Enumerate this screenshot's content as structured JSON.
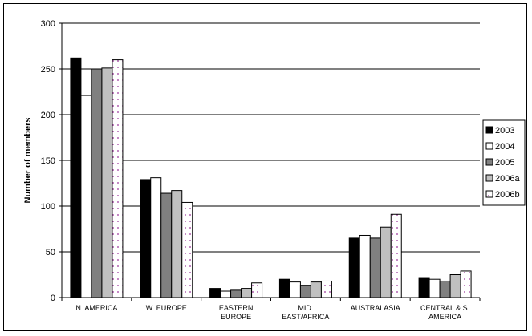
{
  "chart_data": {
    "type": "bar",
    "title": "",
    "xlabel": "",
    "ylabel": "Number of members",
    "ylim": [
      0,
      300
    ],
    "yticks": [
      0,
      50,
      100,
      150,
      200,
      250,
      300
    ],
    "grid": true,
    "legend_position": "right",
    "categories": [
      [
        "N. AMERICA"
      ],
      [
        "W. EUROPE"
      ],
      [
        "EASTERN",
        "EUROPE"
      ],
      [
        "MID.",
        "EAST/AFRICA"
      ],
      [
        "AUSTRALASIA"
      ],
      [
        "CENTRAL & S.",
        "AMERICA"
      ]
    ],
    "series": [
      {
        "name": "2003",
        "fill": "#000000",
        "pattern": "solid",
        "values": [
          262,
          129,
          10,
          20,
          65,
          21
        ]
      },
      {
        "name": "2004",
        "fill": "#ffffff",
        "pattern": "solid",
        "values": [
          221,
          131,
          7,
          17,
          68,
          20
        ]
      },
      {
        "name": "2005",
        "fill": "#808080",
        "pattern": "solid",
        "values": [
          250,
          114,
          8,
          13,
          65,
          18
        ]
      },
      {
        "name": "2006a",
        "fill": "#c0c0c0",
        "pattern": "solid",
        "values": [
          251,
          117,
          10,
          17,
          77,
          25
        ]
      },
      {
        "name": "2006b",
        "fill": "#ffffff",
        "pattern": "dots",
        "dot_color": "#993399",
        "values": [
          260,
          104,
          16,
          18,
          91,
          29
        ]
      }
    ]
  }
}
